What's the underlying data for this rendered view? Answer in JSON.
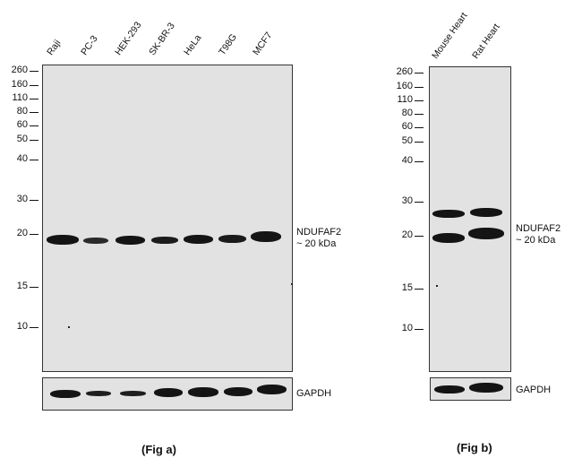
{
  "fig_a": {
    "lanes": [
      "Raji",
      "PC-3",
      "HEK-293",
      "SK-BR-3",
      "HeLa",
      "T98G",
      "MCF7"
    ],
    "mw_markers": [
      "260",
      "160",
      "110",
      "80",
      "60",
      "50",
      "40",
      "30",
      "20",
      "15",
      "10"
    ],
    "target_label": "NDUFAF2",
    "target_size": "~ 20 kDa",
    "loading_control": "GAPDH",
    "caption": "(Fig a)"
  },
  "fig_b": {
    "lanes": [
      "Mouse Heart",
      "Rat Heart"
    ],
    "mw_markers": [
      "260",
      "160",
      "110",
      "80",
      "60",
      "50",
      "40",
      "30",
      "20",
      "15",
      "10"
    ],
    "target_label": "NDUFAF2",
    "target_size": "~ 20 kDa",
    "loading_control": "GAPDH",
    "caption": "(Fig b)"
  }
}
